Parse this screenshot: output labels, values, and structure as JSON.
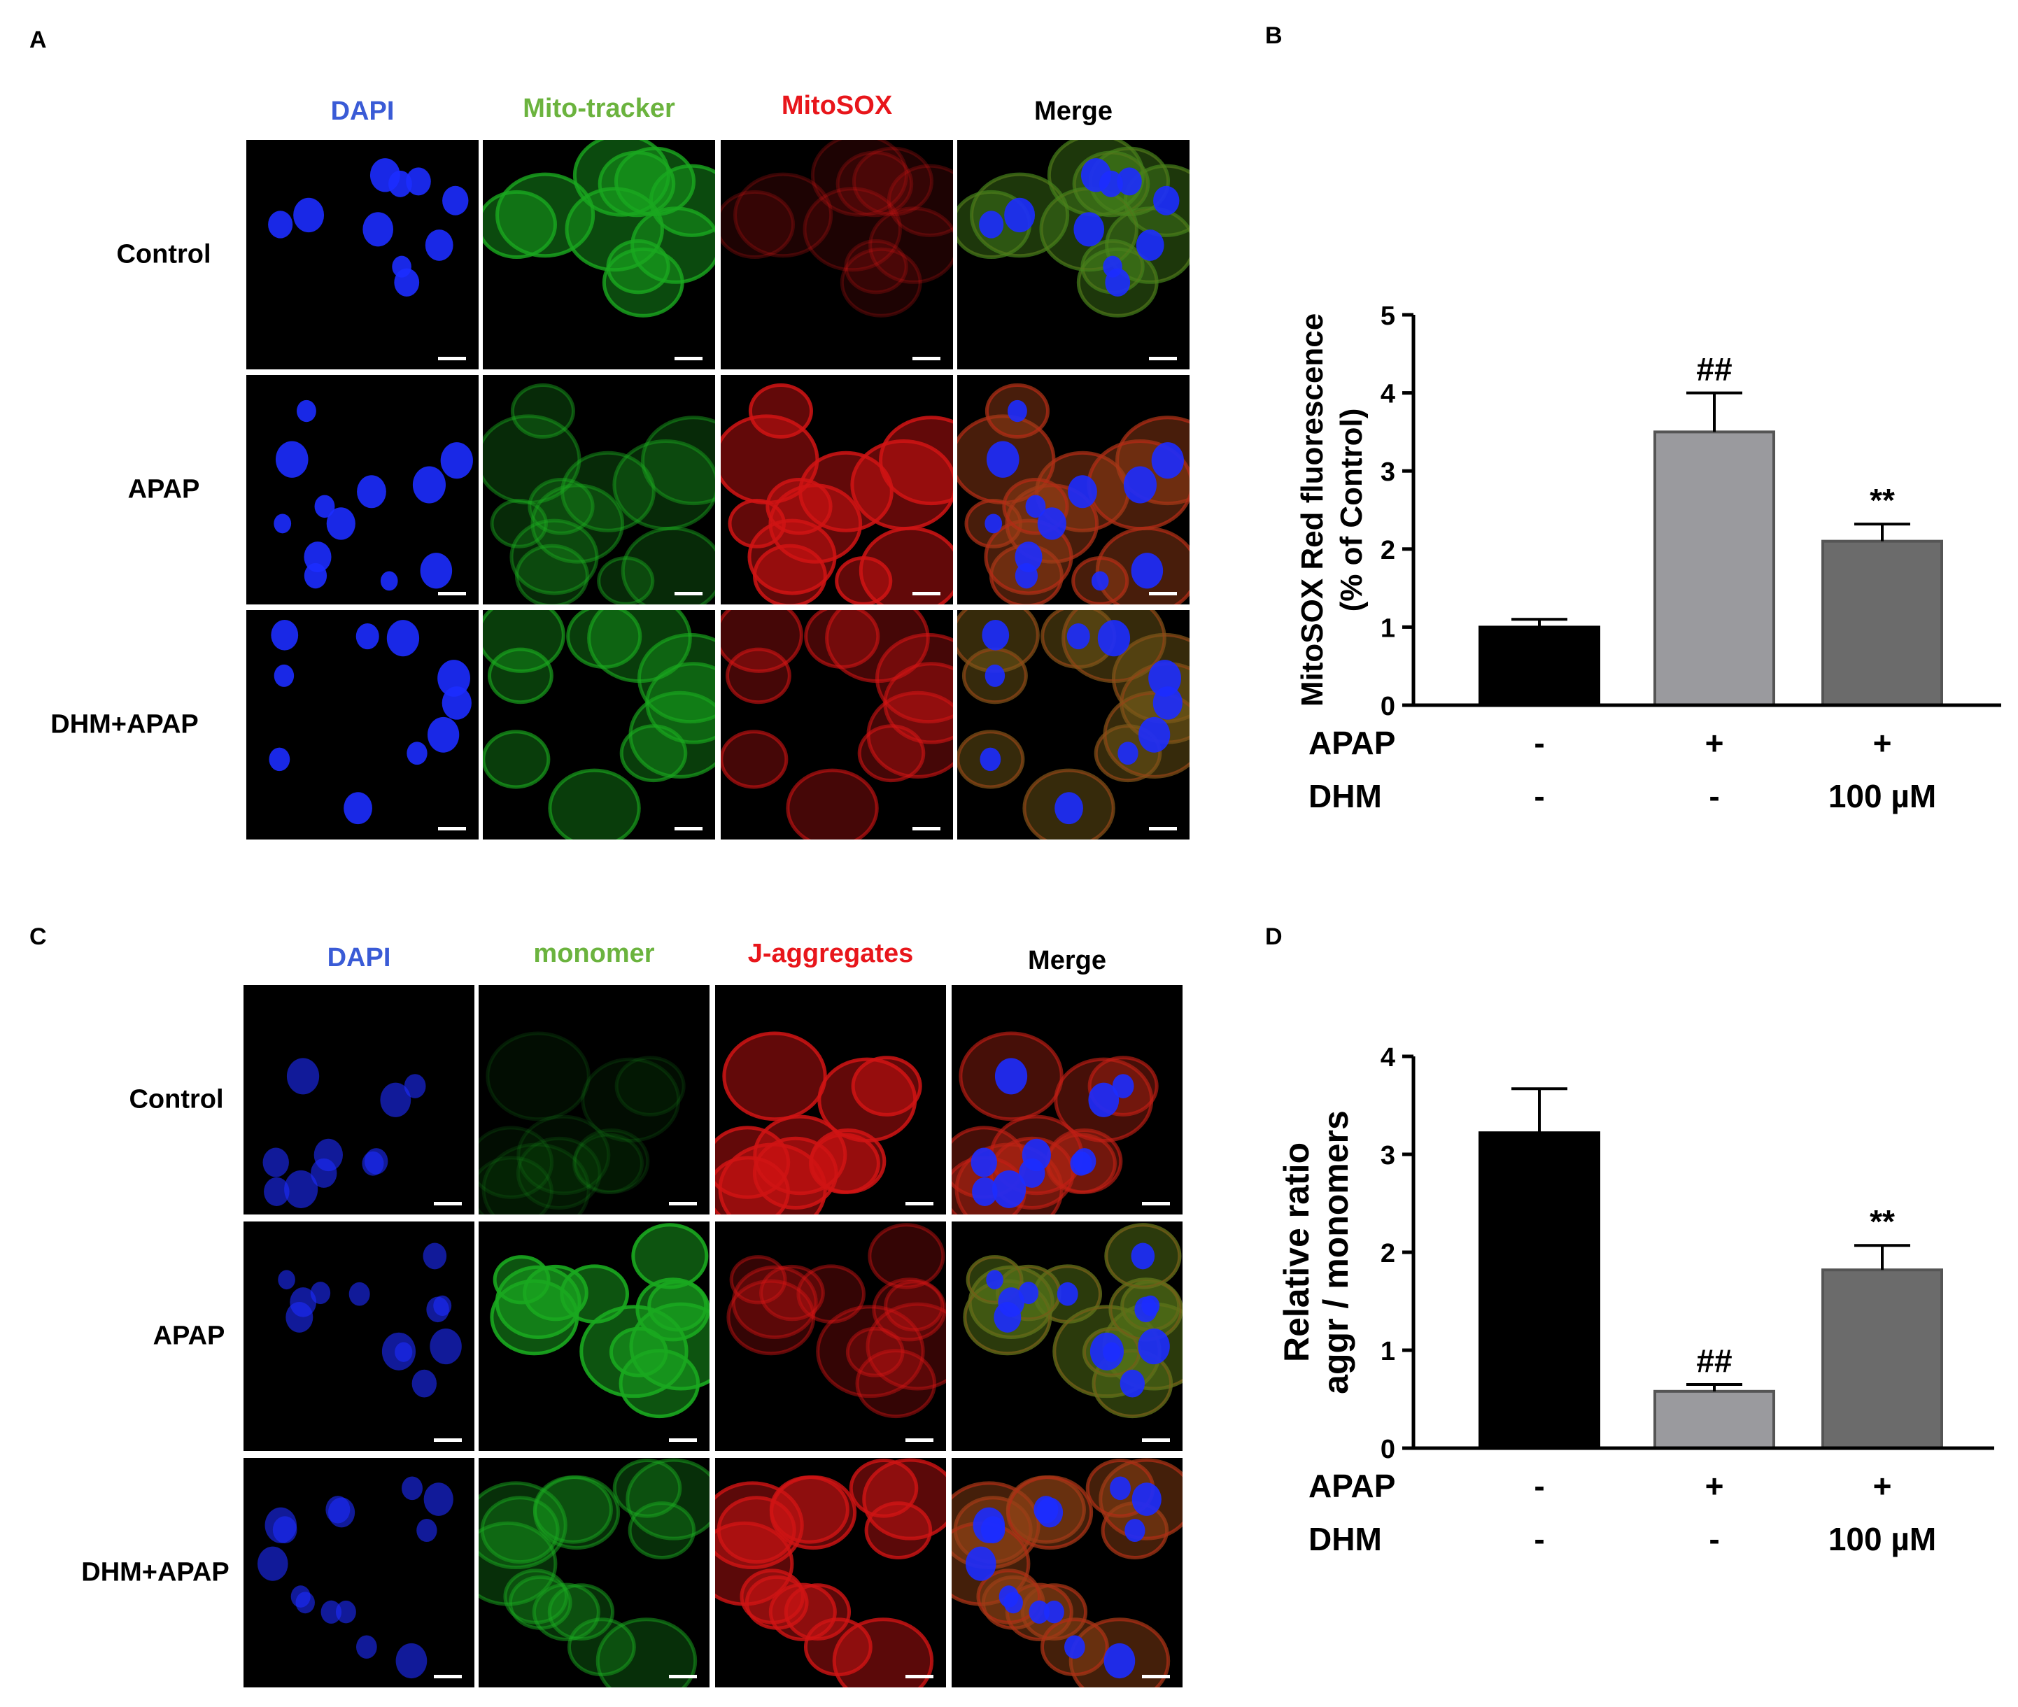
{
  "panel_a": {
    "label": "A",
    "columns": [
      {
        "label": "DAPI",
        "color": "#3a5bd6"
      },
      {
        "label": "Mito-tracker",
        "color": "#6bb33e"
      },
      {
        "label": "MitoSOX",
        "color": "#e8161b"
      },
      {
        "label": "Merge",
        "color": "#000000"
      }
    ],
    "rows": [
      "Control",
      "APAP",
      "DHM+APAP"
    ]
  },
  "panel_c": {
    "label": "C",
    "columns": [
      {
        "label": "DAPI",
        "color": "#3a5bd6"
      },
      {
        "label": "monomer",
        "color": "#6bb33e"
      },
      {
        "label": "J-aggregates",
        "color": "#e8161b"
      },
      {
        "label": "Merge",
        "color": "#000000"
      }
    ],
    "rows": [
      "Control",
      "APAP",
      "DHM+APAP"
    ]
  },
  "panel_b": {
    "label": "B"
  },
  "panel_d": {
    "label": "D"
  },
  "chart_data": [
    {
      "type": "bar",
      "ylabel": [
        "MitoSOX Red fluorescence",
        "(% of Control)"
      ],
      "ylim": [
        0,
        5
      ],
      "yticks": [
        "0",
        "1",
        "2",
        "3",
        "4",
        "5"
      ],
      "values": [
        1.0,
        3.5,
        2.1
      ],
      "errors": [
        0.1,
        0.5,
        0.22
      ],
      "bar_colors": [
        "#000000",
        "#9a9a9e",
        "#6b6b6b"
      ],
      "annotations": [
        "",
        "##",
        "**"
      ],
      "condition_rows": [
        {
          "name": "APAP",
          "values": [
            "-",
            "+",
            "+"
          ]
        },
        {
          "name": "DHM",
          "values": [
            "-",
            "-",
            "100 µM"
          ]
        }
      ]
    },
    {
      "type": "bar",
      "ylabel": [
        "Relative ratio",
        "aggr / monomers"
      ],
      "ylim": [
        0,
        4
      ],
      "yticks": [
        "0",
        "1",
        "2",
        "3",
        "4"
      ],
      "values": [
        3.22,
        0.58,
        1.82
      ],
      "errors": [
        0.45,
        0.07,
        0.25
      ],
      "bar_colors": [
        "#000000",
        "#9a9a9e",
        "#6b6b6b"
      ],
      "annotations": [
        "",
        "##",
        "**"
      ],
      "condition_rows": [
        {
          "name": "APAP",
          "values": [
            "-",
            "+",
            "+"
          ]
        },
        {
          "name": "DHM",
          "values": [
            "-",
            "-",
            "100 µM"
          ]
        }
      ]
    }
  ]
}
